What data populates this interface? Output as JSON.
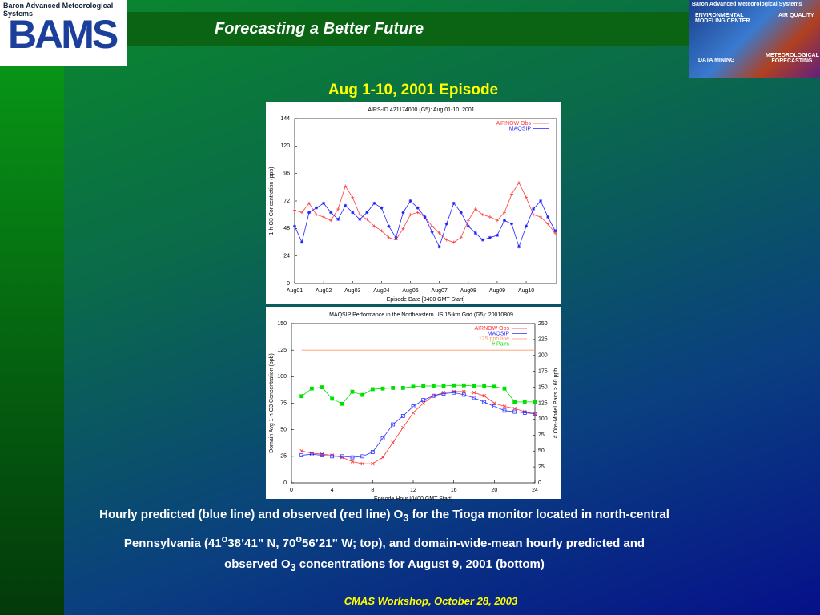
{
  "slide": {
    "logo_caption": "Baron Advanced Meteorological Systems",
    "logo": "BAMS",
    "title": "Forecasting a Better Future",
    "banner": [
      "Baron Advanced Meteorological Systems",
      "ENVIRONMENTAL MODELING CENTER",
      "AIR QUALITY",
      "DATA MINING",
      "METEOROLOGICAL FORECASTING"
    ],
    "heading": "Aug 1-10, 2001 Episode",
    "caption": [
      "Hourly predicted (blue line) and observed (red line) O",
      "3",
      " for the Tioga monitor located in north-central Pennsylvania (41",
      "o",
      "38’41” N, 70",
      "o",
      "56’21” W; top), and domain-wide-mean hourly predicted and observed O",
      "3",
      " concentrations for August 9, 2001 (bottom)"
    ],
    "footer": "CMAS Workshop, October 28, 2003"
  },
  "chart_data": [
    {
      "type": "line",
      "title": "AIRS-ID 421174000 (G5): Aug 01-10, 2001",
      "ylabel": "1-h O3 Concentration (ppb)",
      "xlabel": "Episode Date [0400 GMT Start]",
      "x": [
        0,
        0.25,
        0.5,
        0.75,
        1,
        1.25,
        1.5,
        1.75,
        2,
        2.25,
        2.5,
        2.75,
        3,
        3.25,
        3.5,
        3.75,
        4,
        4.25,
        4.5,
        4.75,
        5,
        5.25,
        5.5,
        5.75,
        6,
        6.25,
        6.5,
        6.75,
        7,
        7.25,
        7.5,
        7.75,
        8,
        8.25,
        8.5,
        8.75,
        9
      ],
      "series": [
        {
          "name": "AIRNOW Obs",
          "color": "#ff4040",
          "marker": "+",
          "values": [
            64,
            62,
            70,
            60,
            58,
            55,
            65,
            85,
            75,
            60,
            56,
            50,
            46,
            40,
            38,
            48,
            60,
            62,
            58,
            50,
            44,
            38,
            36,
            40,
            55,
            65,
            60,
            58,
            55,
            62,
            78,
            88,
            75,
            60,
            58,
            52,
            44
          ]
        },
        {
          "name": "MAQSIP",
          "color": "#2020ff",
          "marker": "*",
          "values": [
            50,
            36,
            62,
            66,
            70,
            62,
            56,
            68,
            62,
            56,
            62,
            70,
            66,
            50,
            40,
            62,
            72,
            66,
            58,
            45,
            32,
            52,
            70,
            62,
            50,
            44,
            38,
            40,
            42,
            55,
            52,
            32,
            50,
            65,
            72,
            58,
            46
          ]
        }
      ],
      "xlim": [
        0,
        9.05
      ],
      "xticks": [
        {
          "value": 0,
          "label": "Aug01"
        },
        {
          "value": 1,
          "label": "Aug02"
        },
        {
          "value": 2,
          "label": "Aug03"
        },
        {
          "value": 3,
          "label": "Aug04"
        },
        {
          "value": 4,
          "label": "Aug06"
        },
        {
          "value": 5,
          "label": "Aug07"
        },
        {
          "value": 6,
          "label": "Aug08"
        },
        {
          "value": 7,
          "label": "Aug09"
        },
        {
          "value": 8,
          "label": "Aug10"
        }
      ],
      "ylim": [
        0,
        144
      ],
      "yticks": [
        0,
        24,
        48,
        72,
        96,
        120,
        144
      ],
      "legend": "upper right"
    },
    {
      "type": "line",
      "title": "MAQSIP Performance in the Northeastern US 15-km Grid (G5): 20010809",
      "ylabel": "Domain Avg 1-h O3 Concentration (ppb)",
      "y2label": "# Obs-Model Pairs > 60 ppb",
      "xlabel": "Episode Hour [0400 GMT Start]",
      "x": [
        1,
        2,
        3,
        4,
        5,
        6,
        7,
        8,
        9,
        10,
        11,
        12,
        13,
        14,
        15,
        16,
        17,
        18,
        19,
        20,
        21,
        22,
        23,
        24
      ],
      "series": [
        {
          "name": "AIRNOW Obs",
          "color": "#ff3333",
          "marker": "x",
          "values": [
            30,
            28,
            27,
            26,
            24,
            20,
            18,
            18,
            24,
            38,
            52,
            66,
            75,
            82,
            85,
            86,
            86,
            85,
            82,
            75,
            72,
            70,
            67,
            65
          ]
        },
        {
          "name": "MAQSIP",
          "color": "#3333ff",
          "marker": "square",
          "values": [
            26,
            27,
            26,
            25,
            25,
            24,
            25,
            29,
            42,
            55,
            63,
            72,
            78,
            82,
            84,
            85,
            83,
            80,
            76,
            72,
            68,
            67,
            66,
            65
          ]
        },
        {
          "name": "125 ppb line",
          "color": "#ff9966",
          "marker": "none",
          "values": [
            125,
            125,
            125,
            125,
            125,
            125,
            125,
            125,
            125,
            125,
            125,
            125,
            125,
            125,
            125,
            125,
            125,
            125,
            125,
            125,
            125,
            125,
            125,
            125
          ]
        },
        {
          "name": "# Pairs",
          "color": "#00e000",
          "marker": "filled",
          "axis": "y2",
          "values": [
            136,
            148,
            150,
            132,
            124,
            143,
            138,
            147,
            148,
            149,
            149,
            151,
            152,
            152,
            152,
            153,
            153,
            152,
            152,
            151,
            148,
            127,
            127,
            127
          ]
        }
      ],
      "xlim": [
        0,
        24
      ],
      "xticks": [
        0,
        4,
        8,
        12,
        16,
        20,
        24
      ],
      "ylim": [
        0,
        150
      ],
      "yticks": [
        0,
        25,
        50,
        75,
        100,
        125,
        150
      ],
      "y2lim": [
        0,
        250
      ],
      "y2ticks": [
        0,
        25,
        50,
        75,
        100,
        125,
        150,
        175,
        200,
        225,
        250
      ],
      "legend": "upper right"
    }
  ]
}
